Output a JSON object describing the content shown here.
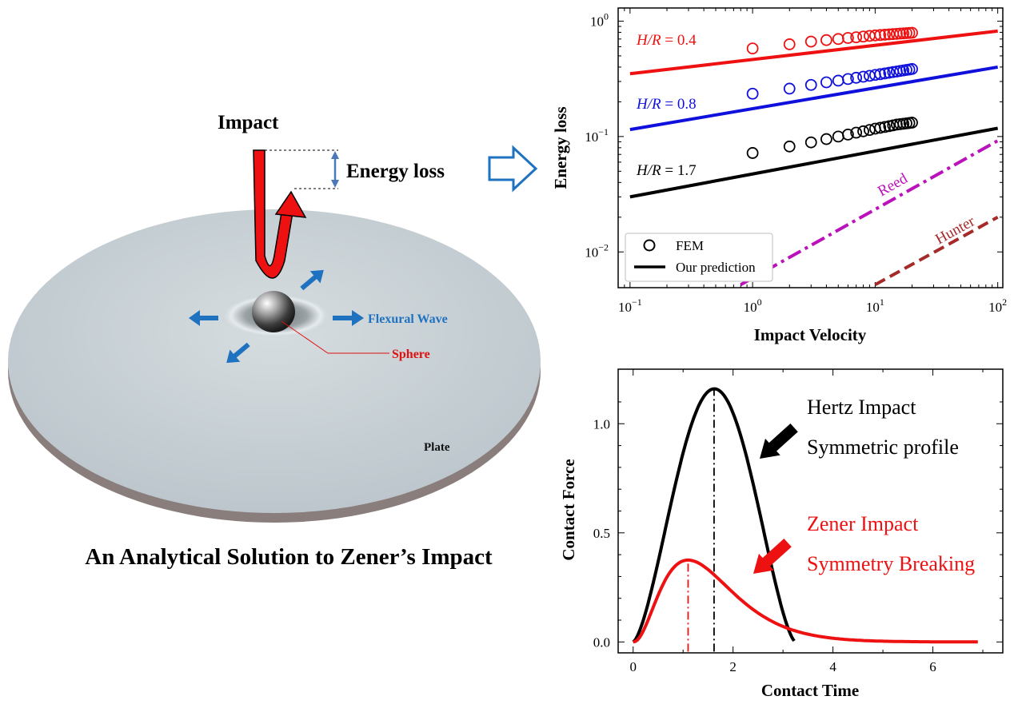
{
  "illustration": {
    "impact_label": "Impact",
    "energy_loss_label": "Energy loss",
    "flexural_wave_label": "Flexural Wave",
    "sphere_label": "Sphere",
    "plate_label": "Plate",
    "caption": "An Analytical Solution to Zener’s Impact",
    "colors": {
      "impact_arrow": "#ee1111",
      "wave_arrow": "#1f72c0",
      "sphere_label": "#e01010",
      "plate": "#c5ced3",
      "plate_edge": "#8a7e7c"
    }
  },
  "chart_data": [
    {
      "type": "scatter",
      "xscale": "log",
      "yscale": "log",
      "xlabel": "Impact Velocity",
      "ylabel": "Energy loss",
      "xlim": [
        0.1,
        100
      ],
      "ylim": [
        0.005,
        1.3
      ],
      "xticks": [
        {
          "v": 0.1,
          "base": "10",
          "exp": "−1"
        },
        {
          "v": 1,
          "base": "10",
          "exp": "0"
        },
        {
          "v": 10,
          "base": "10",
          "exp": "1"
        },
        {
          "v": 100,
          "base": "10",
          "exp": "2"
        }
      ],
      "yticks": [
        {
          "v": 0.01,
          "base": "10",
          "exp": "−2"
        },
        {
          "v": 0.1,
          "base": "10",
          "exp": "−1"
        },
        {
          "v": 1,
          "base": "10",
          "exp": "0"
        }
      ],
      "legend": {
        "placement": "bottom-left",
        "entries": [
          "FEM",
          "Our prediction"
        ]
      },
      "series": [
        {
          "name": "H/R = 0.4",
          "label_lhs": "H/R",
          "label_rhs": "= 0.4",
          "color": "#ee1111",
          "fem_x": [
            1,
            2,
            3,
            4,
            5,
            6,
            7,
            8,
            9,
            10,
            11,
            12,
            13,
            14,
            15,
            16,
            17,
            18,
            19,
            20
          ],
          "fem_y": [
            0.58,
            0.63,
            0.665,
            0.685,
            0.7,
            0.715,
            0.725,
            0.735,
            0.745,
            0.752,
            0.758,
            0.763,
            0.768,
            0.772,
            0.776,
            0.78,
            0.784,
            0.787,
            0.79,
            0.793
          ],
          "prediction_x": [
            0.1,
            100
          ],
          "prediction_y": [
            0.35,
            0.82
          ]
        },
        {
          "name": "H/R = 0.8",
          "label_lhs": "H/R",
          "label_rhs": "= 0.8",
          "color": "#1010dd",
          "fem_x": [
            1,
            2,
            3,
            4,
            5,
            6,
            7,
            8,
            9,
            10,
            11,
            12,
            13,
            14,
            15,
            16,
            17,
            18,
            19,
            20
          ],
          "fem_y": [
            0.235,
            0.26,
            0.28,
            0.295,
            0.305,
            0.315,
            0.323,
            0.33,
            0.336,
            0.342,
            0.347,
            0.352,
            0.357,
            0.362,
            0.366,
            0.37,
            0.374,
            0.378,
            0.381,
            0.385
          ],
          "prediction_x": [
            0.1,
            100
          ],
          "prediction_y": [
            0.115,
            0.4
          ]
        },
        {
          "name": "H/R = 1.7",
          "label_lhs": "H/R",
          "label_rhs": "= 1.7",
          "color": "#000000",
          "fem_x": [
            1,
            2,
            3,
            4,
            5,
            6,
            7,
            8,
            9,
            10,
            11,
            12,
            13,
            14,
            15,
            16,
            17,
            18,
            19,
            20
          ],
          "fem_y": [
            0.072,
            0.082,
            0.089,
            0.095,
            0.1,
            0.104,
            0.108,
            0.111,
            0.114,
            0.117,
            0.119,
            0.121,
            0.123,
            0.125,
            0.127,
            0.128,
            0.129,
            0.13,
            0.131,
            0.132
          ],
          "prediction_x": [
            0.1,
            100
          ],
          "prediction_y": [
            0.03,
            0.118
          ]
        },
        {
          "name": "Reed",
          "color": "#bb11bb",
          "dash": "dashdot",
          "prediction_x": [
            0.8,
            100
          ],
          "prediction_y": [
            0.0052,
            0.092
          ]
        },
        {
          "name": "Hunter",
          "color": "#a52a2a",
          "dash": "dashed",
          "prediction_x": [
            10,
            100
          ],
          "prediction_y": [
            0.0052,
            0.02
          ]
        }
      ]
    },
    {
      "type": "line",
      "xlabel": "Contact Time",
      "ylabel": "Contact Force",
      "xlim": [
        -0.3,
        7.4
      ],
      "ylim": [
        -0.05,
        1.25
      ],
      "xticks": [
        0,
        2,
        4,
        6
      ],
      "yticks": [
        "0.0",
        "0.5",
        "1.0"
      ],
      "series": [
        {
          "name": "Hertz Impact",
          "color": "#000000",
          "kind": "hertz",
          "peak_time": 1.62,
          "peak_force": 1.16,
          "end_time": 3.25
        },
        {
          "name": "Zener Impact",
          "color": "#ee1111",
          "kind": "zener",
          "peak_time": 1.1,
          "peak_force": 0.375,
          "end_time": 6.9
        }
      ],
      "annotations": {
        "hertz_line1": "Hertz Impact",
        "hertz_line2": "Symmetric profile",
        "zener_line1": "Zener Impact",
        "zener_line2": "Symmetry Breaking"
      }
    }
  ]
}
